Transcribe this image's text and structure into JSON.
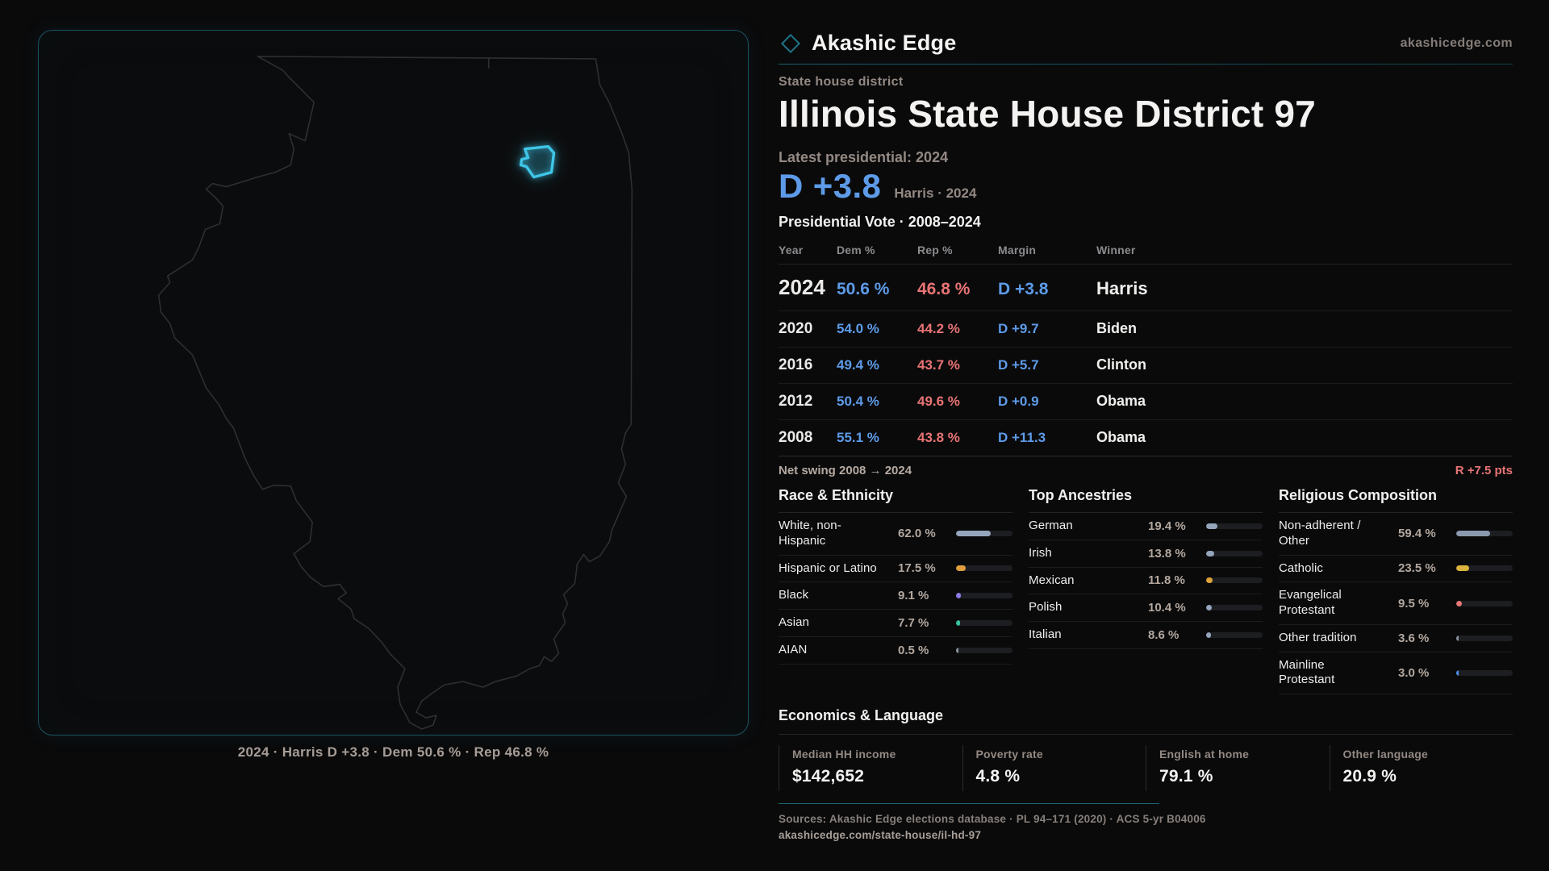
{
  "colors": {
    "dem": "#5d9be8",
    "rep": "#e87474",
    "accent_teal": "#1d6a78",
    "district_highlight": "#3fc6e8"
  },
  "header": {
    "brand": "Akashic Edge",
    "domain": "akashicedge.com"
  },
  "page": {
    "kicker": "State house district",
    "title": "Illinois State House District 97"
  },
  "latest": {
    "label": "Latest presidential: 2024",
    "value": "D +3.8",
    "detail": "Harris · 2024"
  },
  "vote_table": {
    "title": "Presidential Vote · 2008–2024",
    "columns": [
      "Year",
      "Dem %",
      "Rep %",
      "Margin",
      "Winner"
    ],
    "rows": [
      {
        "year": "2024",
        "dem": "50.6 %",
        "rep": "46.8 %",
        "margin": "D +3.8",
        "winner": "Harris",
        "featured": true
      },
      {
        "year": "2020",
        "dem": "54.0 %",
        "rep": "44.2 %",
        "margin": "D +9.7",
        "winner": "Biden",
        "featured": false
      },
      {
        "year": "2016",
        "dem": "49.4 %",
        "rep": "43.7 %",
        "margin": "D +5.7",
        "winner": "Clinton",
        "featured": false
      },
      {
        "year": "2012",
        "dem": "50.4 %",
        "rep": "49.6 %",
        "margin": "D +0.9",
        "winner": "Obama",
        "featured": false
      },
      {
        "year": "2008",
        "dem": "55.1 %",
        "rep": "43.8 %",
        "margin": "D +11.3",
        "winner": "Obama",
        "featured": false
      }
    ],
    "net_swing": {
      "label": "Net swing 2008 → 2024",
      "value": "R +7.5 pts"
    }
  },
  "demographics": [
    {
      "title": "Race & Ethnicity",
      "items": [
        {
          "label": "White, non-Hispanic",
          "value": "62.0 %",
          "pct": 62.0,
          "color": "#95a5bc"
        },
        {
          "label": "Hispanic or Latino",
          "value": "17.5 %",
          "pct": 17.5,
          "color": "#e09f3c"
        },
        {
          "label": "Black",
          "value": "9.1 %",
          "pct": 9.1,
          "color": "#8d7ce8"
        },
        {
          "label": "Asian",
          "value": "7.7 %",
          "pct": 7.7,
          "color": "#36c29e"
        },
        {
          "label": "AIAN",
          "value": "0.5 %",
          "pct": 0.5,
          "color": "#8a939e"
        }
      ]
    },
    {
      "title": "Top Ancestries",
      "items": [
        {
          "label": "German",
          "value": "19.4 %",
          "pct": 19.4,
          "color": "#95a5bc"
        },
        {
          "label": "Irish",
          "value": "13.8 %",
          "pct": 13.8,
          "color": "#95a5bc"
        },
        {
          "label": "Mexican",
          "value": "11.8 %",
          "pct": 11.8,
          "color": "#e0a33c"
        },
        {
          "label": "Polish",
          "value": "10.4 %",
          "pct": 10.4,
          "color": "#95a5bc"
        },
        {
          "label": "Italian",
          "value": "8.6 %",
          "pct": 8.6,
          "color": "#95a5bc"
        }
      ]
    },
    {
      "title": "Religious Composition",
      "items": [
        {
          "label": "Non-adherent / Other",
          "value": "59.4 %",
          "pct": 59.4,
          "color": "#8a99ad"
        },
        {
          "label": "Catholic",
          "value": "23.5 %",
          "pct": 23.5,
          "color": "#d9b33c"
        },
        {
          "label": "Evangelical Protestant",
          "value": "9.5 %",
          "pct": 9.5,
          "color": "#e87878"
        },
        {
          "label": "Other tradition",
          "value": "3.6 %",
          "pct": 3.6,
          "color": "#8a939e"
        },
        {
          "label": "Mainline Protestant",
          "value": "3.0 %",
          "pct": 3.0,
          "color": "#4a8fe8"
        }
      ]
    }
  ],
  "economics": {
    "title": "Economics & Language",
    "stats": [
      {
        "label": "Median HH income",
        "value": "$142,652"
      },
      {
        "label": "Poverty rate",
        "value": "4.8 %"
      },
      {
        "label": "English at home",
        "value": "79.1 %"
      },
      {
        "label": "Other language",
        "value": "20.9 %"
      }
    ]
  },
  "footer": {
    "sources": "Sources: Akashic Edge elections database · PL 94–171 (2020) · ACS 5-yr B04006",
    "permalink": "akashicedge.com/state-house/il-hd-97"
  },
  "map": {
    "caption": "2024 · Harris D +3.8 · Dem 50.6 % · Rep 46.8 %"
  }
}
